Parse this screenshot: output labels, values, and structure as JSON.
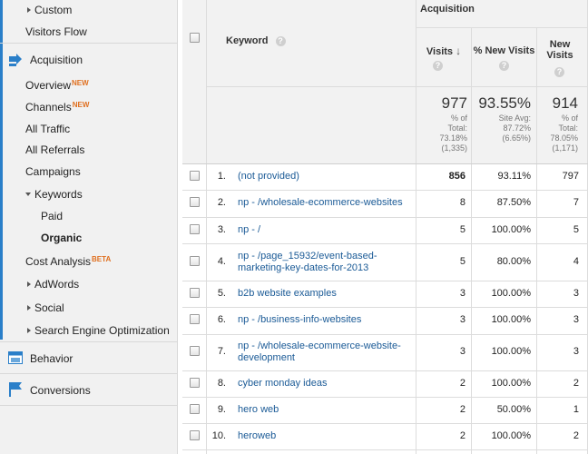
{
  "sidebar": {
    "custom": "Custom",
    "visitors_flow": "Visitors Flow",
    "acquisition": "Acquisition",
    "overview": "Overview",
    "overview_badge": "NEW",
    "channels": "Channels",
    "channels_badge": "NEW",
    "all_traffic": "All Traffic",
    "all_referrals": "All Referrals",
    "campaigns": "Campaigns",
    "keywords": "Keywords",
    "paid": "Paid",
    "organic": "Organic",
    "cost_analysis": "Cost Analysis",
    "cost_analysis_badge": "BETA",
    "adwords": "AdWords",
    "social": "Social",
    "seo": "Search Engine Optimization",
    "behavior": "Behavior",
    "conversions": "Conversions"
  },
  "table": {
    "group_header": "Acquisition",
    "col_keyword": "Keyword",
    "col_visits": "Visits",
    "col_new_visits_pct": "% New Visits",
    "col_new_visits": "New Visits",
    "summary": {
      "visits": "977",
      "visits_sub1": "% of",
      "visits_sub2": "Total:",
      "visits_sub3": "73.18%",
      "visits_sub4": "(1,335)",
      "new_pct": "93.55%",
      "new_pct_sub1": "Site Avg:",
      "new_pct_sub2": "87.72%",
      "new_pct_sub3": "(6.65%)",
      "new_visits": "914",
      "new_visits_sub1": "% of",
      "new_visits_sub2": "Total:",
      "new_visits_sub3": "78.05%",
      "new_visits_sub4": "(1,171)"
    },
    "rows": [
      {
        "idx": "1.",
        "keyword": "(not provided)",
        "visits": "856",
        "pct": "93.11%",
        "nv": "797"
      },
      {
        "idx": "2.",
        "keyword": "np - /wholesale-ecommerce-websites",
        "visits": "8",
        "pct": "87.50%",
        "nv": "7"
      },
      {
        "idx": "3.",
        "keyword": "np - /",
        "visits": "5",
        "pct": "100.00%",
        "nv": "5"
      },
      {
        "idx": "4.",
        "keyword": "np - /page_15932/event-based-marketing-key-dates-for-2013",
        "visits": "5",
        "pct": "80.00%",
        "nv": "4"
      },
      {
        "idx": "5.",
        "keyword": "b2b website examples",
        "visits": "3",
        "pct": "100.00%",
        "nv": "3"
      },
      {
        "idx": "6.",
        "keyword": "np - /business-info-websites",
        "visits": "3",
        "pct": "100.00%",
        "nv": "3"
      },
      {
        "idx": "7.",
        "keyword": "np - /wholesale-ecommerce-website-development",
        "visits": "3",
        "pct": "100.00%",
        "nv": "3"
      },
      {
        "idx": "8.",
        "keyword": "cyber monday ideas",
        "visits": "2",
        "pct": "100.00%",
        "nv": "2"
      },
      {
        "idx": "9.",
        "keyword": "hero web",
        "visits": "2",
        "pct": "50.00%",
        "nv": "1"
      },
      {
        "idx": "10.",
        "keyword": "heroweb",
        "visits": "2",
        "pct": "100.00%",
        "nv": "2"
      }
    ]
  },
  "colors": {
    "accent_blue": "#2a7fc9",
    "link": "#1a5a96",
    "badge_orange": "#e07020"
  }
}
